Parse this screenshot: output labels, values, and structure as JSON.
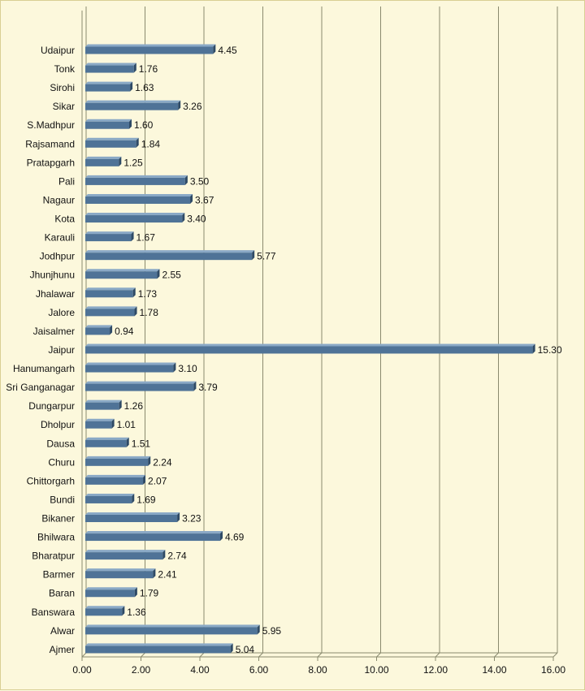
{
  "chart_data": {
    "type": "bar",
    "orientation": "horizontal",
    "title": "",
    "xlabel": "",
    "ylabel": "",
    "xlim": [
      0,
      16
    ],
    "xticks": [
      "0.00",
      "2.00",
      "4.00",
      "6.00",
      "8.00",
      "10.00",
      "12.00",
      "14.00",
      "16.00"
    ],
    "grid": true,
    "legend": "none",
    "bar_color": "#4f7397",
    "background_color": "#fcf8dc",
    "categories": [
      "Udaipur",
      "Tonk",
      "Sirohi",
      "Sikar",
      "S.Madhpur",
      "Rajsamand",
      "Pratapgarh",
      "Pali",
      "Nagaur",
      "Kota",
      "Karauli",
      "Jodhpur",
      "Jhunjhunu",
      "Jhalawar",
      "Jalore",
      "Jaisalmer",
      "Jaipur",
      "Hanumangarh",
      "Sri Ganganagar",
      "Dungarpur",
      "Dholpur",
      "Dausa",
      "Churu",
      "Chittorgarh",
      "Bundi",
      "Bikaner",
      "Bhilwara",
      "Bharatpur",
      "Barmer",
      "Baran",
      "Banswara",
      "Alwar",
      "Ajmer"
    ],
    "values": [
      4.45,
      1.76,
      1.63,
      3.26,
      1.6,
      1.84,
      1.25,
      3.5,
      3.67,
      3.4,
      1.67,
      5.77,
      2.55,
      1.73,
      1.78,
      0.94,
      15.3,
      3.1,
      3.79,
      1.26,
      1.01,
      1.51,
      2.24,
      2.07,
      1.69,
      3.23,
      4.69,
      2.74,
      2.41,
      1.79,
      1.36,
      5.95,
      5.04
    ],
    "value_labels": [
      "4.45",
      "1.76",
      "1.63",
      "3.26",
      "1.60",
      "1.84",
      "1.25",
      "3.50",
      "3.67",
      "3.40",
      "1.67",
      "5.77",
      "2.55",
      "1.73",
      "1.78",
      "0.94",
      "15.30",
      "3.10",
      "3.79",
      "1.26",
      "1.01",
      "1.51",
      "2.24",
      "2.07",
      "1.69",
      "3.23",
      "4.69",
      "2.74",
      "2.41",
      "1.79",
      "1.36",
      "5.95",
      "5.04"
    ]
  }
}
